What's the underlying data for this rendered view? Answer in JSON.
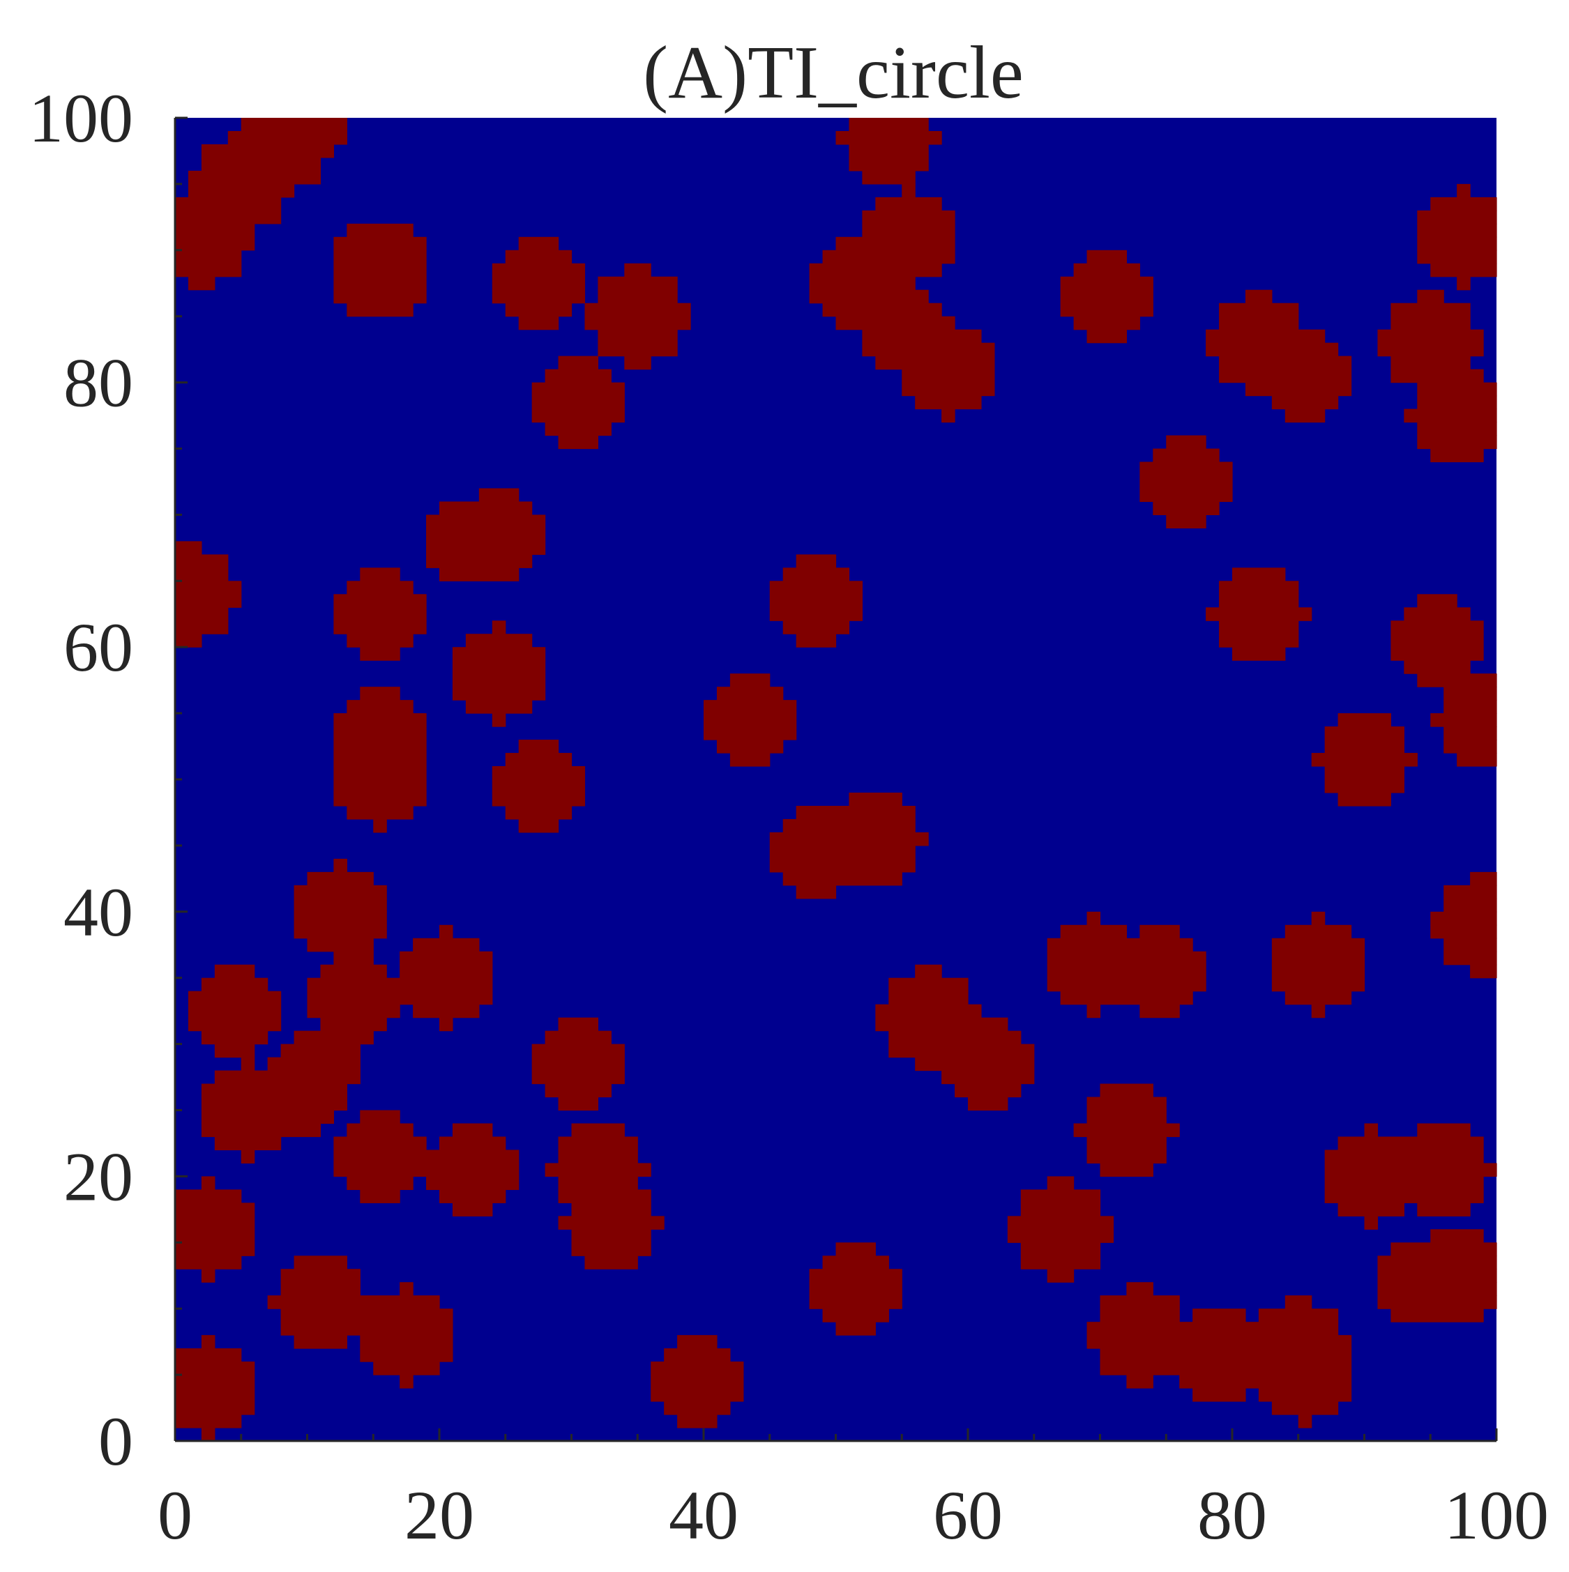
{
  "chart_data": {
    "type": "heatmap",
    "title": "(A)TI_circle",
    "xlabel": "",
    "ylabel": "",
    "xlim": [
      0,
      100
    ],
    "ylim": [
      0,
      100
    ],
    "x_ticks": [
      "0",
      "20",
      "40",
      "60",
      "80",
      "100"
    ],
    "y_ticks": [
      "0",
      "20",
      "40",
      "60",
      "80",
      "100"
    ],
    "x_tick_values": [
      0,
      20,
      40,
      60,
      80,
      100
    ],
    "y_tick_values": [
      0,
      20,
      40,
      60,
      80,
      100
    ],
    "grid": false,
    "legend": "none",
    "colors": {
      "background": "#00008F",
      "circle": "#800000",
      "axis": "#262626"
    },
    "description_of_values": "binary field: background = 0, circle = 1",
    "circles": [
      {
        "cx": 2,
        "cy": 91,
        "r": 3.6
      },
      {
        "cx": 5,
        "cy": 95,
        "r": 3.6
      },
      {
        "cx": 8,
        "cy": 98,
        "r": 3.6
      },
      {
        "cx": 10,
        "cy": 100,
        "r": 3.4
      },
      {
        "cx": 15.5,
        "cy": 88.5,
        "r": 3.7
      },
      {
        "cx": 27.5,
        "cy": 87.5,
        "r": 3.6
      },
      {
        "cx": 35,
        "cy": 85,
        "r": 3.6
      },
      {
        "cx": 30.5,
        "cy": 78.5,
        "r": 3.6
      },
      {
        "cx": 54,
        "cy": 98.5,
        "r": 3.5
      },
      {
        "cx": 55.5,
        "cy": 91,
        "r": 3.6
      },
      {
        "cx": 51.5,
        "cy": 87.5,
        "r": 3.6
      },
      {
        "cx": 55,
        "cy": 84,
        "r": 3.5
      },
      {
        "cx": 58.5,
        "cy": 81,
        "r": 3.6
      },
      {
        "cx": 70.5,
        "cy": 86.5,
        "r": 3.6
      },
      {
        "cx": 82,
        "cy": 83,
        "r": 3.6
      },
      {
        "cx": 85.5,
        "cy": 80.5,
        "r": 3.6
      },
      {
        "cx": 95,
        "cy": 83,
        "r": 3.6
      },
      {
        "cx": 97.5,
        "cy": 91,
        "r": 3.6
      },
      {
        "cx": 97,
        "cy": 77.5,
        "r": 3.6
      },
      {
        "cx": 76.5,
        "cy": 72.5,
        "r": 3.6
      },
      {
        "cx": 24.5,
        "cy": 68.5,
        "r": 3.6
      },
      {
        "cx": 22,
        "cy": 68,
        "r": 3.0
      },
      {
        "cx": 1,
        "cy": 64,
        "r": 3.6
      },
      {
        "cx": 15.5,
        "cy": 62.5,
        "r": 3.6
      },
      {
        "cx": 48.5,
        "cy": 63.5,
        "r": 3.6
      },
      {
        "cx": 82,
        "cy": 62.5,
        "r": 3.6
      },
      {
        "cx": 95.5,
        "cy": 60.5,
        "r": 3.6
      },
      {
        "cx": 24.5,
        "cy": 58,
        "r": 3.6
      },
      {
        "cx": 15.5,
        "cy": 53.5,
        "r": 3.6
      },
      {
        "cx": 15.5,
        "cy": 50,
        "r": 3.6
      },
      {
        "cx": 43.5,
        "cy": 54.5,
        "r": 3.6
      },
      {
        "cx": 99,
        "cy": 54.5,
        "r": 3.6
      },
      {
        "cx": 90,
        "cy": 51.5,
        "r": 3.6
      },
      {
        "cx": 27.5,
        "cy": 49.5,
        "r": 3.6
      },
      {
        "cx": 48.5,
        "cy": 44.5,
        "r": 3.6
      },
      {
        "cx": 53,
        "cy": 45.5,
        "r": 3.6
      },
      {
        "cx": 12.5,
        "cy": 40,
        "r": 3.6
      },
      {
        "cx": 99,
        "cy": 39,
        "r": 3.6
      },
      {
        "cx": 69.5,
        "cy": 36,
        "r": 3.6
      },
      {
        "cx": 74.5,
        "cy": 35.5,
        "r": 3.6
      },
      {
        "cx": 86.5,
        "cy": 36,
        "r": 3.6
      },
      {
        "cx": 4.5,
        "cy": 32.5,
        "r": 3.6
      },
      {
        "cx": 13.5,
        "cy": 33.5,
        "r": 3.6
      },
      {
        "cx": 20.5,
        "cy": 35,
        "r": 3.6
      },
      {
        "cx": 57,
        "cy": 32,
        "r": 3.6
      },
      {
        "cx": 61.5,
        "cy": 28.5,
        "r": 3.6
      },
      {
        "cx": 30.5,
        "cy": 28.5,
        "r": 3.6
      },
      {
        "cx": 5.5,
        "cy": 25,
        "r": 3.6
      },
      {
        "cx": 9.5,
        "cy": 26.5,
        "r": 3.6
      },
      {
        "cx": 11,
        "cy": 28.5,
        "r": 3.0
      },
      {
        "cx": 15.5,
        "cy": 21.5,
        "r": 3.6
      },
      {
        "cx": 22.5,
        "cy": 20.5,
        "r": 3.6
      },
      {
        "cx": 32,
        "cy": 20.5,
        "r": 3.6
      },
      {
        "cx": 33,
        "cy": 16.5,
        "r": 3.6
      },
      {
        "cx": 72,
        "cy": 23.5,
        "r": 3.6
      },
      {
        "cx": 90.5,
        "cy": 20,
        "r": 3.6
      },
      {
        "cx": 96,
        "cy": 20.5,
        "r": 3.6
      },
      {
        "cx": 2.5,
        "cy": 16,
        "r": 3.6
      },
      {
        "cx": 67,
        "cy": 16,
        "r": 3.6
      },
      {
        "cx": 11,
        "cy": 10.5,
        "r": 3.6
      },
      {
        "cx": 17.5,
        "cy": 8,
        "r": 3.6
      },
      {
        "cx": 51.5,
        "cy": 11.5,
        "r": 3.6
      },
      {
        "cx": 97,
        "cy": 12.5,
        "r": 3.6
      },
      {
        "cx": 94,
        "cy": 12,
        "r": 3.0
      },
      {
        "cx": 73,
        "cy": 8,
        "r": 3.6
      },
      {
        "cx": 79,
        "cy": 6.5,
        "r": 3.6
      },
      {
        "cx": 85,
        "cy": 7,
        "r": 3.6
      },
      {
        "cx": 85.5,
        "cy": 5,
        "r": 3.6
      },
      {
        "cx": 2.5,
        "cy": 4,
        "r": 3.6
      },
      {
        "cx": 39.5,
        "cy": 4.5,
        "r": 3.6
      }
    ]
  }
}
